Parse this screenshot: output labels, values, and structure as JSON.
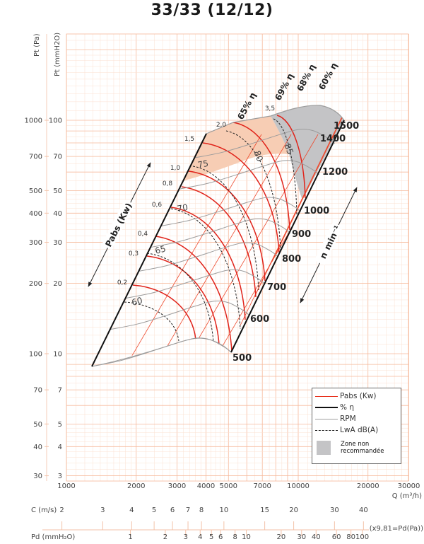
{
  "chart_data": {
    "type": "line",
    "title": "33/33 (12/12)",
    "xlabel": "Q (m³/h)",
    "ylabel_pa": "Pt (Pa)",
    "ylabel_mm": "Pt (mmH2O)",
    "xscale": "log",
    "yscale": "log",
    "xlim": [
      1000,
      30000
    ],
    "ylim_mmH2O": [
      3,
      234
    ],
    "grid": true,
    "x_ticks": [
      "1000",
      "2000",
      "3000",
      "4000",
      "5000",
      "7000",
      "10000",
      "20000",
      "30000"
    ],
    "x_tick_values": [
      1000,
      2000,
      3000,
      4000,
      5000,
      7000,
      10000,
      20000,
      30000
    ],
    "y_ticks_mm": [
      "100",
      "70",
      "50",
      "40",
      "30",
      "20",
      "10",
      "7",
      "5",
      "4",
      "3"
    ],
    "y_tick_values_mm": [
      100,
      70,
      50,
      40,
      30,
      20,
      10,
      7,
      5,
      4,
      3
    ],
    "y_ticks_pa": [
      "1000",
      "700",
      "500",
      "400",
      "300",
      "200",
      "100",
      "70",
      "50",
      "40",
      "30"
    ],
    "rpm_curves": {
      "unit_label": "min-1",
      "speeds": [
        500,
        600,
        700,
        800,
        900,
        1000,
        1200,
        1400,
        1500
      ],
      "speed_labels": [
        "500",
        "600",
        "700",
        "800",
        "900",
        "1000",
        "1200",
        "1400",
        "1500"
      ],
      "reference_rpm": 500,
      "reference_curve": {
        "q": [
          1288,
          1705,
          2258,
          2989,
          3614,
          4156,
          4786,
          5134
        ],
        "p_mmH2O": [
          8.82,
          9.33,
          10.14,
          11.1,
          11.66,
          11.5,
          10.7,
          10.14
        ]
      }
    },
    "power_labels": [
      "0,2",
      "0,3",
      "0,4",
      "0,6",
      "0,8",
      "1,0",
      "1,5",
      "2,0",
      "3,5"
    ],
    "power_values_kw": [
      0.2,
      0.3,
      0.4,
      0.6,
      0.8,
      1.0,
      1.5,
      2.0,
      3.5
    ],
    "efficiency_labels": [
      "65% η",
      "69% η",
      "68% η",
      "60% η"
    ],
    "efficiency_values_pct": [
      65,
      69,
      68,
      60
    ],
    "noise_labels": [
      "60",
      "65",
      "70",
      "75",
      "80",
      "85"
    ],
    "noise_values_dBA": [
      60,
      65,
      70,
      75,
      80,
      85
    ],
    "arrows": {
      "power": "Pabs (Kw)",
      "speed": "n",
      "speed_unit": "min⁻¹"
    },
    "legend": [
      {
        "label": "Pabs (Kw)",
        "color": "#e8321e",
        "style": "solid"
      },
      {
        "label": "% η",
        "color": "#111111",
        "style": "solid-thick"
      },
      {
        "label": "RPM",
        "color": "#a0a0a0",
        "style": "solid"
      },
      {
        "label": "LwA dB(A)",
        "color": "#222222",
        "style": "dashed"
      }
    ],
    "legend_zone": "Zone non recommandée",
    "zone_colors": {
      "recommended_peak": "#f7cdb4",
      "not_recommended": "#c4c4c6"
    },
    "velocity_scale": {
      "label": "C (m/s)",
      "ticks": [
        "2",
        "3",
        "4",
        "5",
        "6",
        "7",
        "8",
        "10",
        "15",
        "20",
        "30",
        "40"
      ],
      "values": [
        2,
        3,
        4,
        5,
        6,
        7,
        8,
        10,
        15,
        20,
        30,
        40
      ]
    },
    "dynamic_pressure_scale": {
      "label": "Pd (mmH₂O)",
      "ticks": [
        "1",
        "2",
        "3",
        "4",
        "5",
        "6",
        "8",
        "10",
        "20",
        "30",
        "40",
        "60",
        "80",
        "100"
      ],
      "values": [
        1,
        2,
        3,
        4,
        5,
        6,
        8,
        10,
        20,
        30,
        40,
        60,
        80,
        100
      ],
      "note": "(x9,81=Pd(Pa))"
    }
  }
}
